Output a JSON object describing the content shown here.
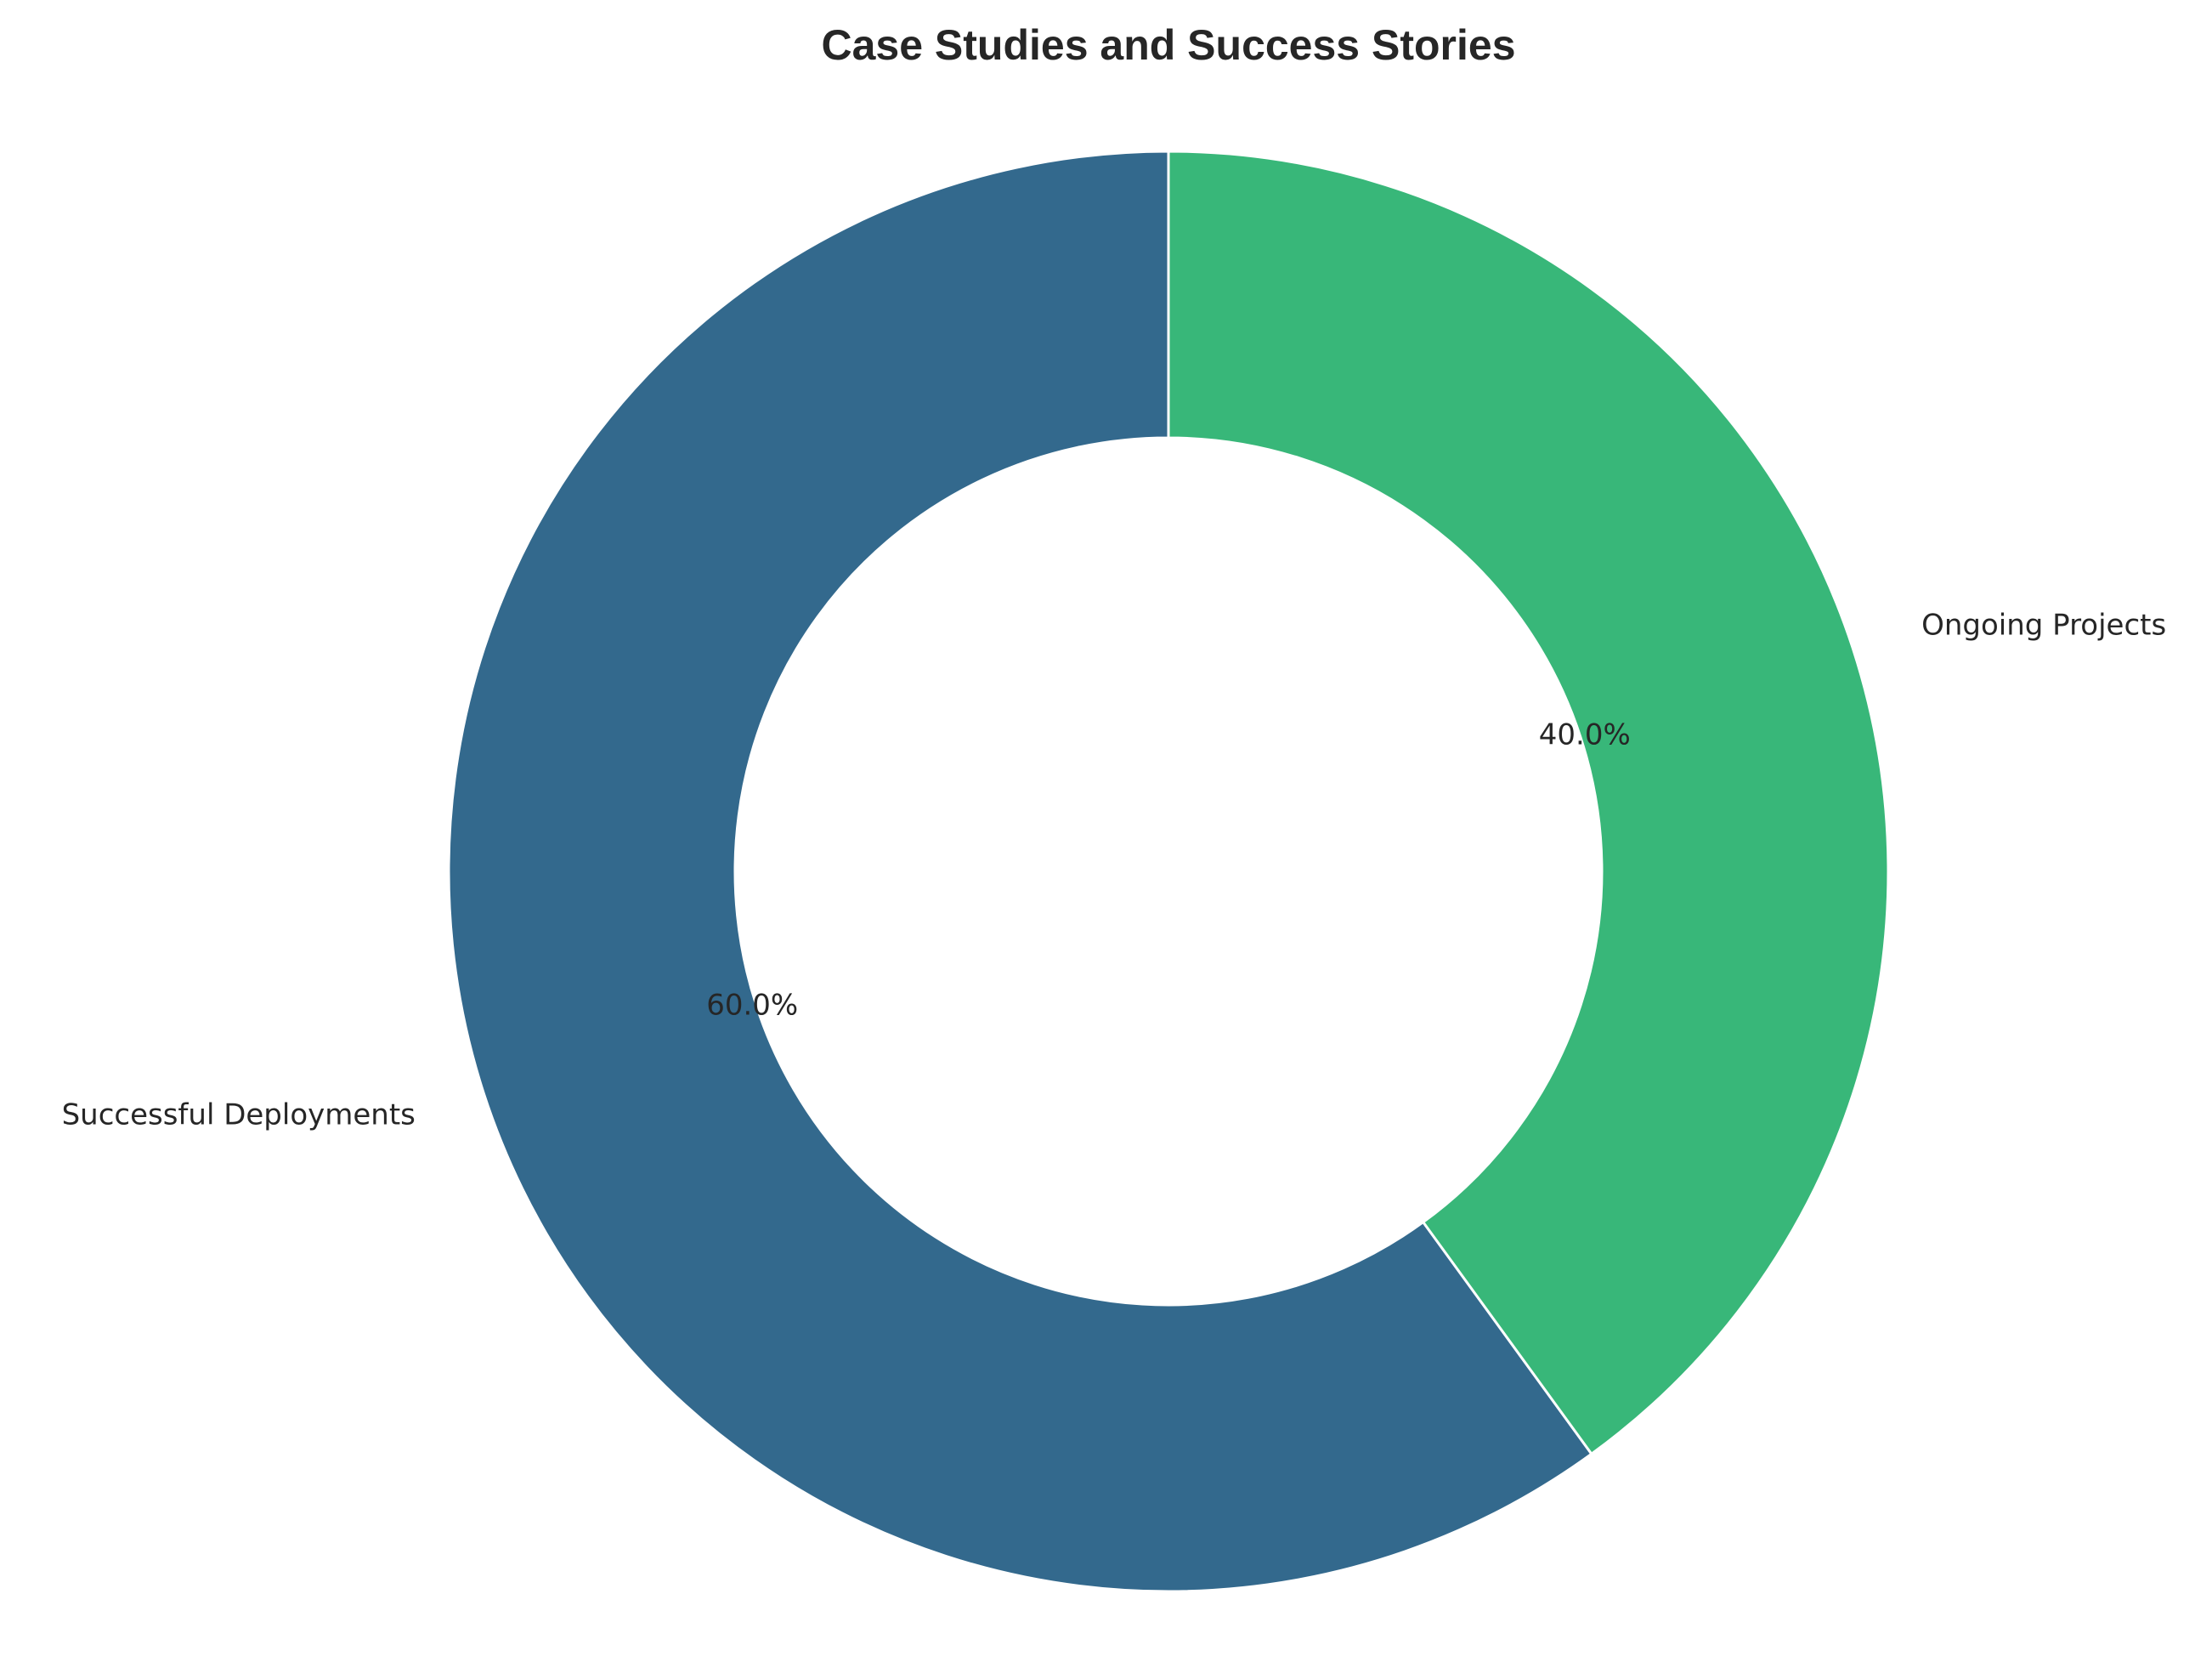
{
  "chart_data": {
    "type": "pie",
    "style": "donut",
    "title": "Case Studies and Success Stories",
    "categories": [
      "Successful Deployments",
      "Ongoing Projects"
    ],
    "values": [
      60.0,
      40.0
    ],
    "percent_labels": [
      "60.0%",
      "40.0%"
    ],
    "colors": [
      "#33698D",
      "#38B779"
    ],
    "edge_color": "#ffffff",
    "start_angle_deg": 90,
    "direction": "counterclockwise",
    "legend": "none"
  }
}
